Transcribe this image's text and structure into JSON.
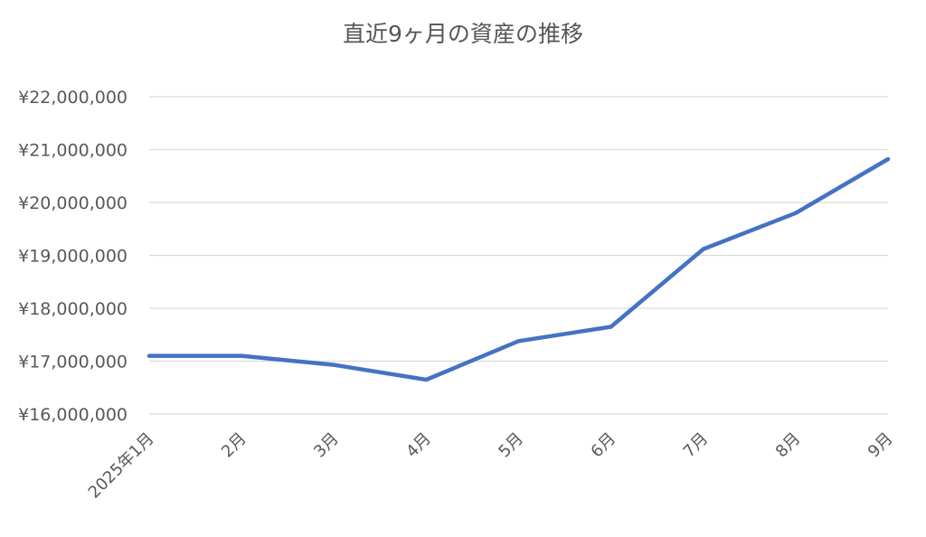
{
  "chart_data": {
    "type": "line",
    "title": "直近9ヶ月の資産の推移",
    "xlabel": "",
    "ylabel": "",
    "categories": [
      "2025年1月",
      "2月",
      "3月",
      "4月",
      "5月",
      "6月",
      "7月",
      "8月",
      "9月"
    ],
    "series": [
      {
        "values": [
          17100000,
          17100000,
          16930000,
          16650000,
          17380000,
          17650000,
          19120000,
          19800000,
          20820000
        ],
        "color": "#4472C4"
      }
    ],
    "ylim": [
      16000000,
      22000000
    ],
    "yticks": [
      16000000,
      17000000,
      18000000,
      19000000,
      20000000,
      21000000,
      22000000
    ],
    "ytick_labels": [
      "¥16,000,000",
      "¥17,000,000",
      "¥18,000,000",
      "¥19,000,000",
      "¥20,000,000",
      "¥21,000,000",
      "¥22,000,000"
    ],
    "grid": true,
    "gridColor": "#D9D9D9",
    "legend": "none"
  }
}
